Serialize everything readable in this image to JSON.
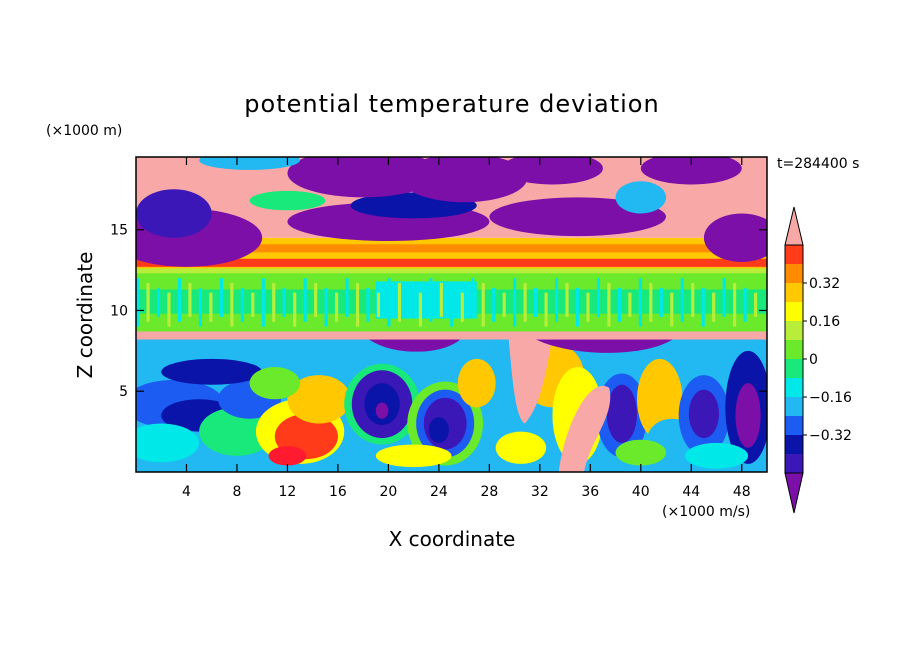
{
  "chart_data": {
    "type": "heatmap",
    "title": "potential temperature deviation",
    "xlabel": "X coordinate",
    "ylabel": "Z coordinate",
    "x_unit": "(×1000 m/s)",
    "y_unit": "(×1000 m)",
    "time_label": "t=284400 s",
    "xlim": [
      0,
      50
    ],
    "ylim": [
      0,
      19.5
    ],
    "x_ticks": [
      4,
      8,
      12,
      16,
      20,
      24,
      28,
      32,
      36,
      40,
      44,
      48
    ],
    "y_ticks": [
      5,
      10,
      15
    ],
    "colorbar": {
      "levels": [
        -0.48,
        -0.4,
        -0.32,
        -0.24,
        -0.16,
        -0.08,
        0,
        0.08,
        0.16,
        0.24,
        0.32,
        0.4,
        0.48
      ],
      "tick_labels": [
        "0.32",
        "0.16",
        "0",
        "−0.16",
        "−0.32"
      ],
      "tick_values": [
        0.32,
        0.16,
        0,
        -0.16,
        -0.32
      ],
      "colors": [
        "#7b0fa8",
        "#3c17b8",
        "#0a14a8",
        "#1d5cf2",
        "#22b8f2",
        "#00e8e8",
        "#19e87a",
        "#6aea2a",
        "#b8ee3a",
        "#ffff00",
        "#ffc800",
        "#ff8c00",
        "#ff3b1a",
        "#ff1a30",
        "#f9a8a8"
      ]
    },
    "layers": [
      {
        "z": [
          0.3,
          4.5
        ],
        "description_level": "mixed: -0.48 to 0.48 eddies"
      },
      {
        "z": [
          4.5,
          8.5
        ],
        "description_level": "-0.48 and 0.48 plumes"
      },
      {
        "z": [
          8.5,
          12.5
        ],
        "level": 0.0
      },
      {
        "z": [
          12.5,
          14.5
        ],
        "level": 0.32
      },
      {
        "z": [
          14.5,
          19.5
        ],
        "description_level": "0.48 and -0.48 patches"
      }
    ]
  }
}
